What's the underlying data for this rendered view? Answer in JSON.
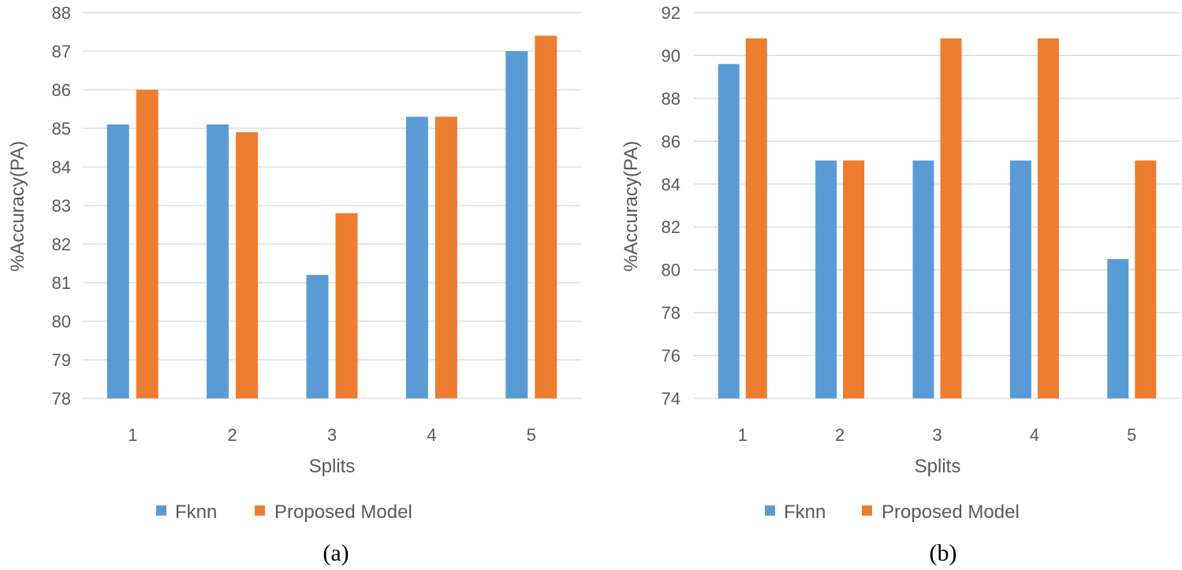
{
  "colors": {
    "series_1": "#5b9bd5",
    "series_2": "#ed7d31",
    "gridline": "#d9d9d9",
    "text": "#595959"
  },
  "chart_data": [
    {
      "type": "bar",
      "caption": "(a)",
      "categories": [
        "1",
        "2",
        "3",
        "4",
        "5"
      ],
      "series": [
        {
          "name": "Fknn",
          "values": [
            85.1,
            85.1,
            81.2,
            85.3,
            87.0
          ]
        },
        {
          "name": "Proposed Model",
          "values": [
            86.0,
            84.9,
            82.8,
            85.3,
            87.4
          ]
        }
      ],
      "xlabel": "Splits",
      "ylabel": "%Accuracy(PA)",
      "ylim": [
        78,
        88
      ],
      "yticks": [
        78,
        79,
        80,
        81,
        82,
        83,
        84,
        85,
        86,
        87,
        88
      ],
      "grid": true,
      "legend": "bottom"
    },
    {
      "type": "bar",
      "caption": "(b)",
      "categories": [
        "1",
        "2",
        "3",
        "4",
        "5"
      ],
      "series": [
        {
          "name": "Fknn",
          "values": [
            89.6,
            85.1,
            85.1,
            85.1,
            80.5
          ]
        },
        {
          "name": "Proposed Model",
          "values": [
            90.8,
            85.1,
            90.8,
            90.8,
            85.1
          ]
        }
      ],
      "xlabel": "Splits",
      "ylabel": "%Accuracy(PA)",
      "ylim": [
        74,
        92
      ],
      "yticks": [
        74,
        76,
        78,
        80,
        82,
        84,
        86,
        88,
        90,
        92
      ],
      "grid": true,
      "legend": "bottom"
    }
  ]
}
